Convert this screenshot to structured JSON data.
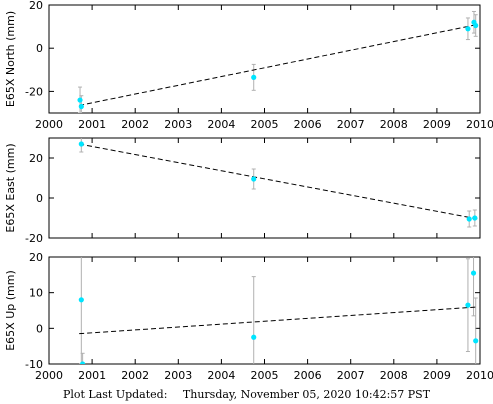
{
  "footer": {
    "label": "Plot Last Updated:",
    "timestamp": "Thursday, November 05, 2020 10:42:57 PST"
  },
  "chart_data": [
    {
      "type": "scatter",
      "title": "",
      "xlabel": "",
      "ylabel": "E65X North (mm)",
      "xlim": [
        2000,
        2010
      ],
      "ylim": [
        -30,
        20
      ],
      "xticks": [
        "2000",
        "2001",
        "2002",
        "2003",
        "2004",
        "2005",
        "2006",
        "2007",
        "2008",
        "2009",
        "2010"
      ],
      "yticks": [
        -20,
        0,
        20
      ],
      "show_x_tick_labels": true,
      "point_color": "#00e5ff",
      "errorbar_color": "#b0b0b0",
      "trend_color": "#000000",
      "points": [
        {
          "x": 2000.72,
          "y": -24,
          "err": 6
        },
        {
          "x": 2000.75,
          "y": -27,
          "err": 5
        },
        {
          "x": 2004.75,
          "y": -13.5,
          "err": 6
        },
        {
          "x": 2009.72,
          "y": 9,
          "err": 5
        },
        {
          "x": 2009.86,
          "y": 12,
          "err": 5
        },
        {
          "x": 2009.9,
          "y": 10.5,
          "err": 5
        }
      ],
      "trend": {
        "x": [
          2000.7,
          2009.95
        ],
        "y": [
          -26.5,
          11
        ]
      }
    },
    {
      "type": "scatter",
      "title": "",
      "xlabel": "",
      "ylabel": "E65X East (mm)",
      "xlim": [
        2000,
        2010
      ],
      "ylim": [
        -20,
        30
      ],
      "xticks": [
        "2000",
        "2001",
        "2002",
        "2003",
        "2004",
        "2005",
        "2006",
        "2007",
        "2008",
        "2009",
        "2010"
      ],
      "yticks": [
        -20,
        0,
        20
      ],
      "show_x_tick_labels": false,
      "point_color": "#00e5ff",
      "errorbar_color": "#b0b0b0",
      "trend_color": "#000000",
      "points": [
        {
          "x": 2000.75,
          "y": 27,
          "err": 4
        },
        {
          "x": 2004.75,
          "y": 9.5,
          "err": 5
        },
        {
          "x": 2009.75,
          "y": -10.5,
          "err": 4
        },
        {
          "x": 2009.88,
          "y": -10,
          "err": 4
        }
      ],
      "trend": {
        "x": [
          2000.7,
          2009.95
        ],
        "y": [
          27,
          -10.5
        ]
      }
    },
    {
      "type": "scatter",
      "title": "",
      "xlabel": "",
      "ylabel": "E65X Up (mm)",
      "xlim": [
        2000,
        2010
      ],
      "ylim": [
        -10,
        20
      ],
      "xticks": [
        "2000",
        "2001",
        "2002",
        "2003",
        "2004",
        "2005",
        "2006",
        "2007",
        "2008",
        "2009",
        "2010"
      ],
      "yticks": [
        -10,
        0,
        10,
        20
      ],
      "show_x_tick_labels": true,
      "point_color": "#00e5ff",
      "errorbar_color": "#b0b0b0",
      "trend_color": "#000000",
      "points": [
        {
          "x": 2000.75,
          "y": 8,
          "err": 18
        },
        {
          "x": 2000.78,
          "y": -10,
          "err": 3
        },
        {
          "x": 2004.75,
          "y": -2.5,
          "err": 17
        },
        {
          "x": 2009.72,
          "y": 6.5,
          "err": 13
        },
        {
          "x": 2009.85,
          "y": 15.5,
          "err": 12
        },
        {
          "x": 2009.9,
          "y": -3.5,
          "err": 12
        }
      ],
      "trend": {
        "x": [
          2000.7,
          2009.95
        ],
        "y": [
          -1.5,
          6
        ]
      }
    }
  ]
}
